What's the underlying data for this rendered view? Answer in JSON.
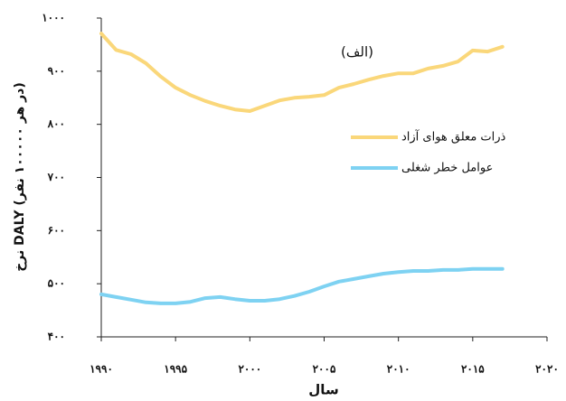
{
  "chart_data": {
    "type": "line",
    "annotation": "(الف)",
    "x_label": "سال",
    "y_label": "نرخ DALY (در هر ۱۰۰۰۰۰ نفر)",
    "x": [
      1990,
      1991,
      1992,
      1993,
      1994,
      1995,
      1996,
      1997,
      1998,
      1999,
      2000,
      2001,
      2002,
      2003,
      2004,
      2005,
      2006,
      2007,
      2008,
      2009,
      2010,
      2011,
      2012,
      2013,
      2014,
      2015,
      2016,
      2017
    ],
    "series": [
      {
        "name": "ذرات معلق هوای آزاد",
        "color": "#fad77a",
        "values": [
          971,
          940,
          932,
          915,
          890,
          869,
          855,
          844,
          835,
          828,
          825,
          835,
          845,
          850,
          852,
          855,
          869,
          876,
          884,
          891,
          896,
          896,
          905,
          910,
          918,
          939,
          937,
          946
        ]
      },
      {
        "name": "عوامل خطر شغلی",
        "color": "#7ed2f2",
        "values": [
          480,
          475,
          470,
          465,
          463,
          463,
          466,
          473,
          475,
          471,
          468,
          468,
          471,
          477,
          485,
          495,
          504,
          509,
          514,
          519,
          522,
          524,
          524,
          526,
          526,
          528,
          528,
          528
        ]
      }
    ],
    "xlim": [
      1990,
      2020
    ],
    "xticks": [
      {
        "value": 1990,
        "label": "۱۹۹۰"
      },
      {
        "value": 1995,
        "label": "۱۹۹۵"
      },
      {
        "value": 2000,
        "label": "۲۰۰۰"
      },
      {
        "value": 2005,
        "label": "۲۰۰۵"
      },
      {
        "value": 2010,
        "label": "۲۰۱۰"
      },
      {
        "value": 2015,
        "label": "۲۰۱۵"
      },
      {
        "value": 2020,
        "label": "۲۰۲۰"
      }
    ],
    "ylim": [
      400,
      1000
    ],
    "yticks": [
      {
        "value": 400,
        "label": "۴۰۰"
      },
      {
        "value": 500,
        "label": "۵۰۰"
      },
      {
        "value": 600,
        "label": "۶۰۰"
      },
      {
        "value": 700,
        "label": "۷۰۰"
      },
      {
        "value": 800,
        "label": "۸۰۰"
      },
      {
        "value": 900,
        "label": "۹۰۰"
      },
      {
        "value": 1000,
        "label": "۱۰۰۰"
      }
    ],
    "grid": false
  }
}
